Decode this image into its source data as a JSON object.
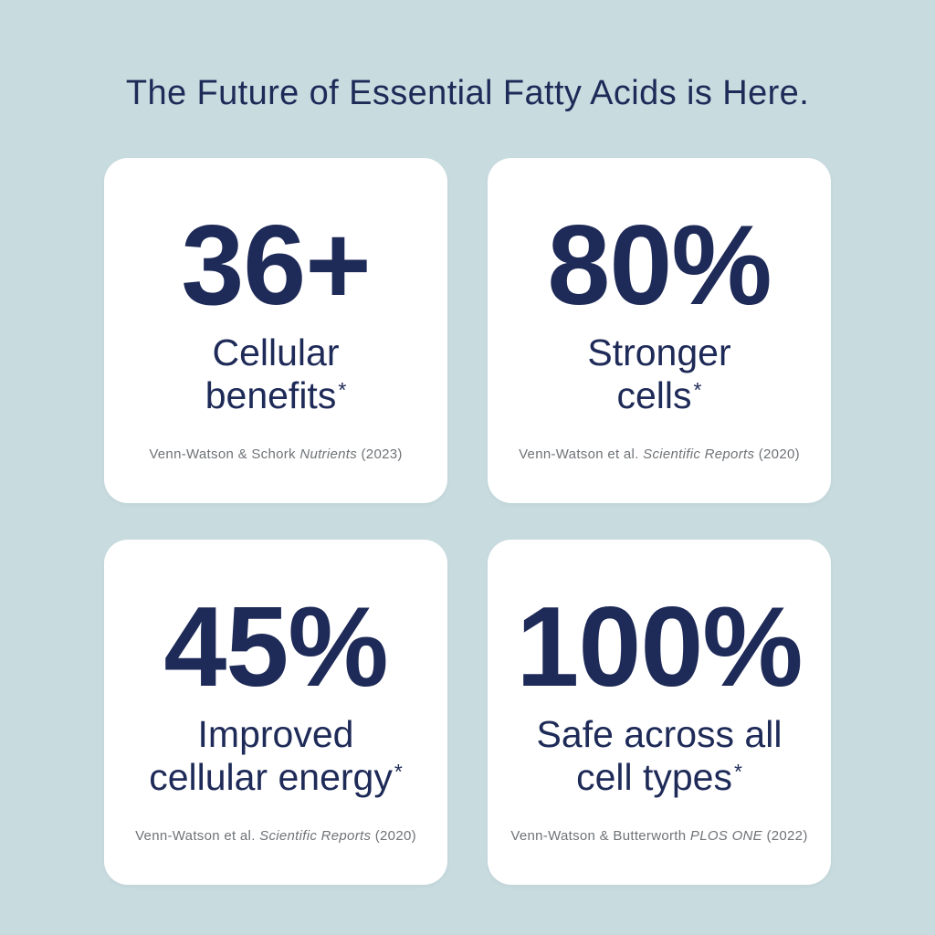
{
  "theme": {
    "background": "#c8dbdf",
    "ink": "#1e2a57",
    "muted": "#6f7377",
    "card": "#ffffff"
  },
  "header": {
    "title": "The Future of Essential Fatty Acids is Here."
  },
  "cards": [
    {
      "stat": "36+",
      "label": "Cellular\nbenefits",
      "asterisk": "*",
      "citation": {
        "authors": "Venn-Watson & Schork",
        "journal": "Nutrients",
        "year": "(2023)"
      }
    },
    {
      "stat": "80%",
      "label": "Stronger\ncells",
      "asterisk": "*",
      "citation": {
        "authors": "Venn-Watson et al.",
        "journal": "Scientific Reports",
        "year": "(2020)"
      }
    },
    {
      "stat": "45%",
      "label": "Improved\ncellular energy",
      "asterisk": "*",
      "citation": {
        "authors": "Venn-Watson et al.",
        "journal": "Scientific Reports",
        "year": "(2020)"
      }
    },
    {
      "stat": "100%",
      "label": "Safe across all\ncell types",
      "asterisk": "*",
      "citation": {
        "authors": "Venn-Watson & Butterworth",
        "journal": "PLOS ONE",
        "year": "(2022)"
      }
    }
  ]
}
